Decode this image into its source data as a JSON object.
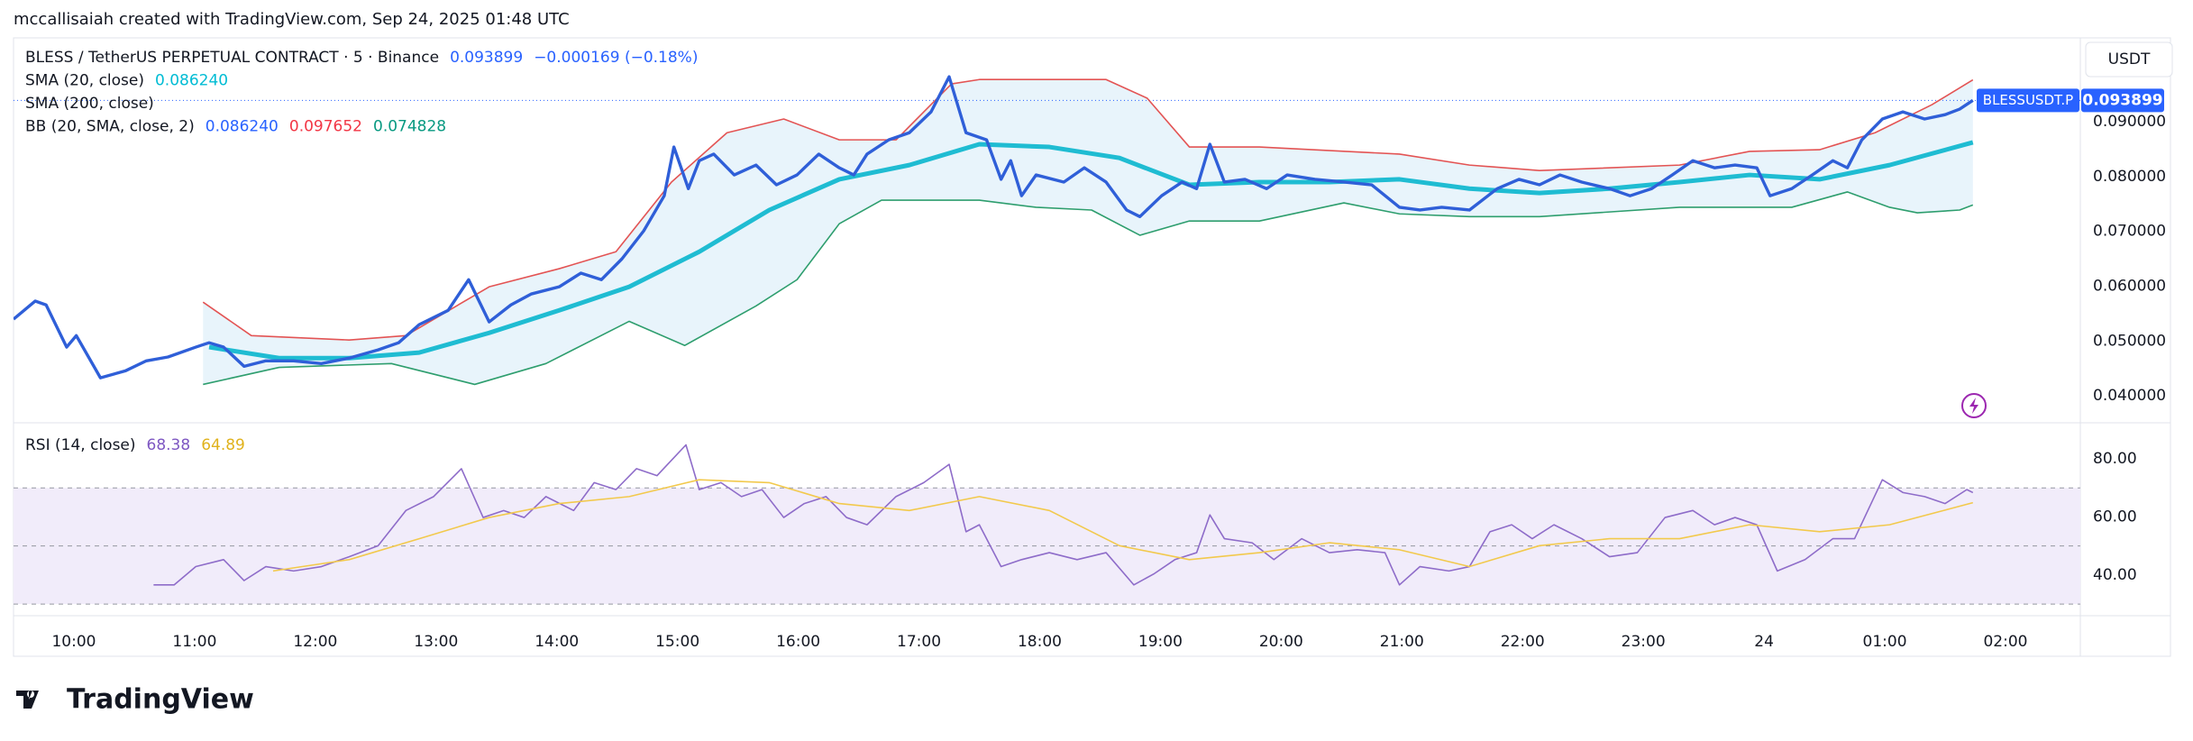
{
  "header": "mccallisaiah created with TradingView.com, Sep 24, 2025 01:48 UTC",
  "footer": {
    "brand": "TradingView"
  },
  "chart_data": [
    {
      "type": "line",
      "legend": [
        {
          "text": "BLESS / TetherUS PERPETUAL CONTRACT · 5 · Binance",
          "values": [
            {
              "label": "0.093899",
              "color": "#2962ff"
            },
            {
              "label": "−0.000169 (−0.18%)",
              "color": "#2962ff"
            }
          ]
        },
        {
          "text": "SMA (20, close)",
          "values": [
            {
              "label": "0.086240",
              "color": "#00bcd4"
            }
          ]
        },
        {
          "text": "SMA (200, close)"
        },
        {
          "text": "BB (20, SMA, close, 2)",
          "values": [
            {
              "label": "0.086240",
              "color": "#2962ff"
            },
            {
              "label": "0.097652",
              "color": "#f23645"
            },
            {
              "label": "0.074828",
              "color": "#089981"
            }
          ]
        }
      ],
      "currency": "USDT",
      "symbol_tag": "BLESSUSDT.P",
      "last_price": {
        "value": 0.093899,
        "label": "0.093899"
      },
      "band_fill": "#e8f4fb",
      "xlim": [
        9.5,
        26.62
      ],
      "ylim": [
        0.0351,
        0.1053
      ],
      "yticks": [
        {
          "value": 0.04,
          "label": "0.040000"
        },
        {
          "value": 0.05,
          "label": "0.050000"
        },
        {
          "value": 0.06,
          "label": "0.060000"
        },
        {
          "value": 0.07,
          "label": "0.070000"
        },
        {
          "value": 0.08,
          "label": "0.080000"
        },
        {
          "value": 0.09,
          "label": "0.090000"
        }
      ],
      "grid": false,
      "series": [
        {
          "color": "#e35454",
          "width": 1.6,
          "x": [
            11.07,
            11.47,
            12.28,
            12.75,
            13.44,
            14.02,
            14.49,
            14.95,
            15.41,
            15.88,
            16.34,
            16.81,
            17.27,
            17.5,
            18.55,
            18.89,
            19.24,
            19.82,
            20.98,
            21.56,
            22.14,
            23.3,
            23.88,
            24.46,
            24.92,
            25.39,
            25.73
          ],
          "values": [
            0.0571,
            0.051,
            0.0502,
            0.051,
            0.0599,
            0.0632,
            0.0663,
            0.079,
            0.088,
            0.0905,
            0.0867,
            0.0867,
            0.0969,
            0.0977,
            0.0977,
            0.0943,
            0.0854,
            0.0854,
            0.0841,
            0.0821,
            0.0811,
            0.0821,
            0.0846,
            0.0849,
            0.088,
            0.0931,
            0.097652
          ]
        },
        {
          "color": "#2e9e6e",
          "width": 1.6,
          "x": [
            11.07,
            11.7,
            12.63,
            13.32,
            13.91,
            14.6,
            15.06,
            15.65,
            15.99,
            16.34,
            16.69,
            17.5,
            17.97,
            18.43,
            18.83,
            19.24,
            19.82,
            20.52,
            20.98,
            21.56,
            22.14,
            23.3,
            24.23,
            24.69,
            25.04,
            25.27,
            25.62,
            25.73
          ],
          "values": [
            0.0421,
            0.0452,
            0.0459,
            0.0421,
            0.0459,
            0.0536,
            0.0492,
            0.0564,
            0.0612,
            0.0714,
            0.0757,
            0.0757,
            0.0744,
            0.0739,
            0.0693,
            0.0719,
            0.0719,
            0.0752,
            0.0732,
            0.0727,
            0.0727,
            0.0744,
            0.0744,
            0.0772,
            0.0744,
            0.0734,
            0.0739,
            0.074828
          ]
        },
        {
          "color": "#1fbcd2",
          "width": 5,
          "x": [
            11.12,
            11.7,
            12.28,
            12.86,
            13.44,
            14.02,
            14.6,
            15.18,
            15.76,
            16.34,
            16.92,
            17.5,
            18.08,
            18.66,
            19.24,
            19.82,
            20.4,
            20.98,
            21.56,
            22.14,
            22.72,
            23.3,
            23.88,
            24.46,
            25.04,
            25.73
          ],
          "values": [
            0.0489,
            0.0469,
            0.0469,
            0.0479,
            0.0515,
            0.0556,
            0.0599,
            0.0663,
            0.0739,
            0.0795,
            0.0821,
            0.0859,
            0.0854,
            0.0834,
            0.0785,
            0.079,
            0.079,
            0.0795,
            0.0778,
            0.077,
            0.0778,
            0.079,
            0.0803,
            0.0795,
            0.0821,
            0.08624
          ]
        },
        {
          "color": "#2f5fd8",
          "width": 3.4,
          "x": [
            9.5,
            9.68,
            9.77,
            9.94,
            10.02,
            10.22,
            10.43,
            10.6,
            10.78,
            11.01,
            11.12,
            11.24,
            11.41,
            11.59,
            11.82,
            12.05,
            12.28,
            12.52,
            12.69,
            12.86,
            13.1,
            13.27,
            13.44,
            13.62,
            13.79,
            14.02,
            14.2,
            14.37,
            14.54,
            14.72,
            14.89,
            14.97,
            15.09,
            15.18,
            15.3,
            15.47,
            15.65,
            15.82,
            15.99,
            16.17,
            16.34,
            16.46,
            16.57,
            16.75,
            16.92,
            17.1,
            17.25,
            17.39,
            17.56,
            17.68,
            17.76,
            17.85,
            17.97,
            18.2,
            18.37,
            18.55,
            18.72,
            18.83,
            19.01,
            19.18,
            19.3,
            19.41,
            19.53,
            19.7,
            19.88,
            20.05,
            20.28,
            20.52,
            20.75,
            20.98,
            21.15,
            21.33,
            21.56,
            21.79,
            21.97,
            22.14,
            22.31,
            22.49,
            22.72,
            22.89,
            23.07,
            23.24,
            23.41,
            23.59,
            23.76,
            23.94,
            24.05,
            24.23,
            24.4,
            24.57,
            24.69,
            24.81,
            24.98,
            25.15,
            25.33,
            25.5,
            25.62,
            25.73
          ],
          "values": [
            0.054,
            0.0573,
            0.0566,
            0.0489,
            0.051,
            0.0433,
            0.0446,
            0.0464,
            0.0471,
            0.0489,
            0.0497,
            0.0489,
            0.0454,
            0.0464,
            0.0464,
            0.0459,
            0.0469,
            0.0484,
            0.0497,
            0.053,
            0.0556,
            0.0612,
            0.0535,
            0.0566,
            0.0586,
            0.0599,
            0.0624,
            0.0612,
            0.065,
            0.0701,
            0.0765,
            0.0854,
            0.0778,
            0.0829,
            0.0841,
            0.0803,
            0.0821,
            0.0785,
            0.0803,
            0.0841,
            0.0816,
            0.0803,
            0.0841,
            0.0867,
            0.088,
            0.0918,
            0.0982,
            0.088,
            0.0867,
            0.0795,
            0.0829,
            0.0765,
            0.0803,
            0.079,
            0.0816,
            0.079,
            0.0739,
            0.0727,
            0.0765,
            0.079,
            0.0778,
            0.0859,
            0.079,
            0.0795,
            0.0778,
            0.0803,
            0.0795,
            0.079,
            0.0785,
            0.0744,
            0.0739,
            0.0744,
            0.0739,
            0.0778,
            0.0795,
            0.0785,
            0.0803,
            0.079,
            0.0778,
            0.0765,
            0.0778,
            0.0803,
            0.0829,
            0.0816,
            0.0821,
            0.0816,
            0.0765,
            0.0778,
            0.0803,
            0.0829,
            0.0816,
            0.0867,
            0.0905,
            0.0918,
            0.0905,
            0.0913,
            0.0923,
            0.093899
          ]
        }
      ]
    },
    {
      "type": "line",
      "legend": [
        {
          "text": "RSI (14, close)",
          "values": [
            {
              "label": "68.38",
              "color": "#7e57c2"
            },
            {
              "label": "64.89",
              "color": "#e0b21c"
            }
          ]
        }
      ],
      "band_fill": "#f1ecfa",
      "levels": [
        30,
        50,
        70
      ],
      "xlim": [
        9.5,
        26.62
      ],
      "ylim": [
        26,
        92.4
      ],
      "yticks": [
        {
          "value": 40,
          "label": "40.00"
        },
        {
          "value": 60,
          "label": "60.00"
        },
        {
          "value": 80,
          "label": "80.00"
        }
      ],
      "xticks": [
        {
          "value": 10,
          "label": "10:00"
        },
        {
          "value": 11,
          "label": "11:00"
        },
        {
          "value": 12,
          "label": "12:00"
        },
        {
          "value": 13,
          "label": "13:00"
        },
        {
          "value": 14,
          "label": "14:00"
        },
        {
          "value": 15,
          "label": "15:00"
        },
        {
          "value": 16,
          "label": "16:00"
        },
        {
          "value": 17,
          "label": "17:00"
        },
        {
          "value": 18,
          "label": "18:00"
        },
        {
          "value": 19,
          "label": "19:00"
        },
        {
          "value": 20,
          "label": "20:00"
        },
        {
          "value": 21,
          "label": "21:00"
        },
        {
          "value": 22,
          "label": "22:00"
        },
        {
          "value": 23,
          "label": "23:00"
        },
        {
          "value": 24,
          "label": "24"
        },
        {
          "value": 25,
          "label": "01:00"
        },
        {
          "value": 26,
          "label": "02:00"
        }
      ],
      "grid": false,
      "series": [
        {
          "color": "#8e6cc9",
          "width": 1.6,
          "x": [
            10.66,
            10.83,
            11.01,
            11.24,
            11.41,
            11.59,
            11.82,
            12.05,
            12.28,
            12.52,
            12.75,
            12.98,
            13.21,
            13.39,
            13.56,
            13.73,
            13.91,
            14.14,
            14.31,
            14.49,
            14.66,
            14.83,
            15.07,
            15.18,
            15.36,
            15.53,
            15.7,
            15.88,
            16.05,
            16.23,
            16.4,
            16.57,
            16.81,
            17.04,
            17.25,
            17.39,
            17.5,
            17.68,
            17.85,
            18.08,
            18.31,
            18.55,
            18.78,
            18.95,
            19.12,
            19.3,
            19.41,
            19.53,
            19.76,
            19.94,
            20.17,
            20.4,
            20.63,
            20.86,
            20.98,
            21.15,
            21.39,
            21.56,
            21.73,
            21.91,
            22.08,
            22.26,
            22.49,
            22.72,
            22.95,
            23.18,
            23.41,
            23.59,
            23.76,
            23.94,
            24.11,
            24.34,
            24.57,
            24.75,
            24.98,
            25.15,
            25.33,
            25.5,
            25.68,
            25.73
          ],
          "values": [
            36.6,
            36.6,
            42.9,
            45.3,
            38.1,
            42.9,
            41.4,
            42.9,
            46.3,
            50.1,
            62.2,
            67.0,
            76.6,
            59.8,
            62.2,
            59.8,
            67.0,
            62.2,
            71.8,
            69.4,
            76.6,
            74.2,
            84.8,
            69.4,
            71.8,
            67.0,
            69.4,
            59.8,
            64.6,
            67.0,
            59.8,
            57.3,
            67.0,
            71.8,
            78.1,
            54.9,
            57.3,
            42.9,
            45.3,
            47.7,
            45.3,
            47.7,
            36.6,
            40.5,
            45.3,
            47.7,
            60.7,
            52.5,
            51.1,
            45.3,
            52.5,
            47.7,
            48.7,
            47.7,
            36.6,
            42.9,
            41.4,
            42.9,
            54.9,
            57.3,
            52.5,
            57.3,
            52.5,
            46.3,
            47.7,
            59.8,
            62.2,
            57.3,
            59.8,
            57.3,
            41.4,
            45.3,
            52.5,
            52.5,
            72.8,
            68.4,
            67.0,
            64.6,
            69.4,
            68.38
          ]
        },
        {
          "color": "#f2c94c",
          "width": 1.6,
          "x": [
            11.65,
            12.28,
            12.86,
            13.44,
            14.02,
            14.6,
            15.18,
            15.76,
            16.34,
            16.92,
            17.5,
            18.08,
            18.66,
            19.24,
            19.82,
            20.4,
            20.98,
            21.56,
            22.14,
            22.72,
            23.3,
            23.88,
            24.46,
            25.04,
            25.73
          ],
          "values": [
            41.4,
            45.3,
            52.5,
            59.8,
            64.6,
            67.0,
            72.8,
            71.8,
            64.6,
            62.2,
            67.0,
            62.2,
            50.1,
            45.3,
            47.7,
            51.1,
            48.7,
            42.9,
            50.1,
            52.5,
            52.5,
            57.3,
            54.9,
            57.3,
            64.89
          ]
        }
      ]
    }
  ]
}
